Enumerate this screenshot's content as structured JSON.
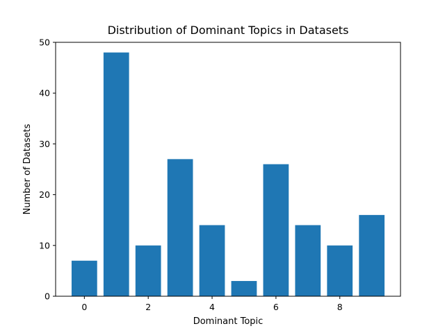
{
  "chart_data": {
    "type": "bar",
    "title": "Distribution of Dominant Topics in Datasets",
    "xlabel": "Dominant Topic",
    "ylabel": "Number of Datasets",
    "categories": [
      0,
      1,
      2,
      3,
      4,
      5,
      6,
      7,
      8,
      9
    ],
    "values": [
      7,
      48,
      10,
      27,
      14,
      3,
      26,
      14,
      10,
      16
    ],
    "xlim": [
      -0.9,
      9.9
    ],
    "ylim": [
      0,
      50
    ],
    "xticks": [
      0,
      2,
      4,
      6,
      8
    ],
    "yticks": [
      0,
      10,
      20,
      30,
      40,
      50
    ],
    "bar_color": "#1f77b4",
    "grid": false,
    "legend": false
  }
}
